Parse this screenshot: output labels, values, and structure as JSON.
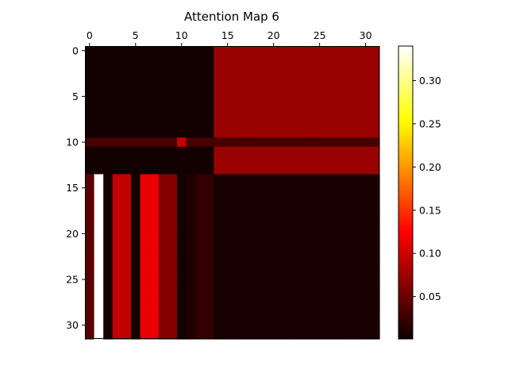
{
  "chart_data": {
    "type": "heatmap",
    "title": "Attention Map 6",
    "xlabel": "",
    "ylabel": "",
    "rows": 32,
    "cols": 32,
    "x_ticks": [
      0,
      5,
      10,
      15,
      20,
      25,
      30
    ],
    "y_ticks": [
      0,
      5,
      10,
      15,
      20,
      25,
      30
    ],
    "x_tick_position": "top",
    "colormap": "hot",
    "colorbar": {
      "min": 0.001,
      "max": 0.34,
      "ticks": [
        0.05,
        0.1,
        0.15,
        0.2,
        0.25,
        0.3
      ],
      "tick_labels": [
        "0.05",
        "0.10",
        "0.15",
        "0.20",
        "0.25",
        "0.30"
      ]
    },
    "grid": false,
    "block_structure": {
      "top_left_rows_0_13_cols_0_13": 0.005,
      "top_right_rows_0_13_cols_14_31": 0.07,
      "bottom_right_rows_14_31_cols_14_31": 0.008,
      "row_10_all_cols": 0.03,
      "cell_10_10": 0.09
    },
    "bottom_left_column_values_rows_14_31": {
      "0": 0.04,
      "1": 0.34,
      "2": 0.006,
      "3": 0.09,
      "4": 0.09,
      "5": 0.006,
      "6": 0.11,
      "7": 0.11,
      "8": 0.06,
      "9": 0.06,
      "10": 0.005,
      "11": 0.01,
      "12": 0.02,
      "13": 0.02
    }
  }
}
